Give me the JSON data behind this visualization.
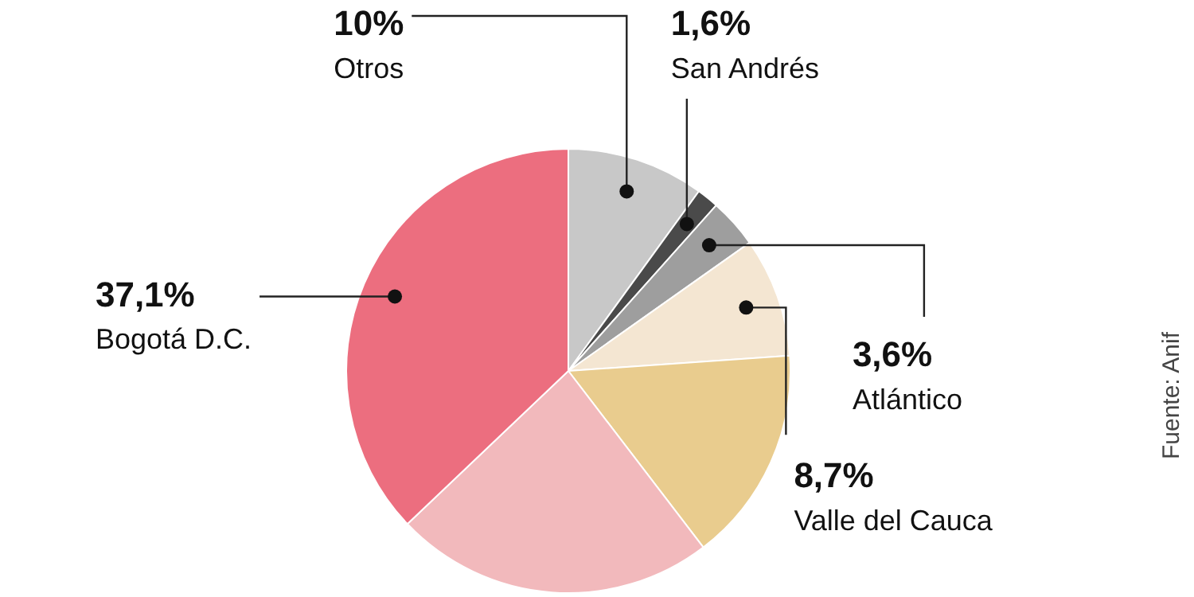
{
  "chart_data": {
    "type": "pie",
    "categories": [
      "Otros",
      "San Andrés",
      "Atlántico",
      "Valle del Cauca",
      null,
      null,
      "Bogotá D.C."
    ],
    "values": [
      10,
      1.6,
      3.6,
      8.7,
      15.7,
      23.3,
      37.1
    ],
    "value_labels": [
      "10%",
      "1,6%",
      "3,6%",
      "8,7%",
      null,
      null,
      "37,1%"
    ],
    "colors": [
      "#c8c8c8",
      "#4a4a4a",
      "#9e9e9e",
      "#f4e6d2",
      "#e9cc8e",
      "#f2b9bc",
      "#ec6e7f"
    ],
    "annotations": [
      "Fuente: Anif"
    ],
    "legend": false
  }
}
